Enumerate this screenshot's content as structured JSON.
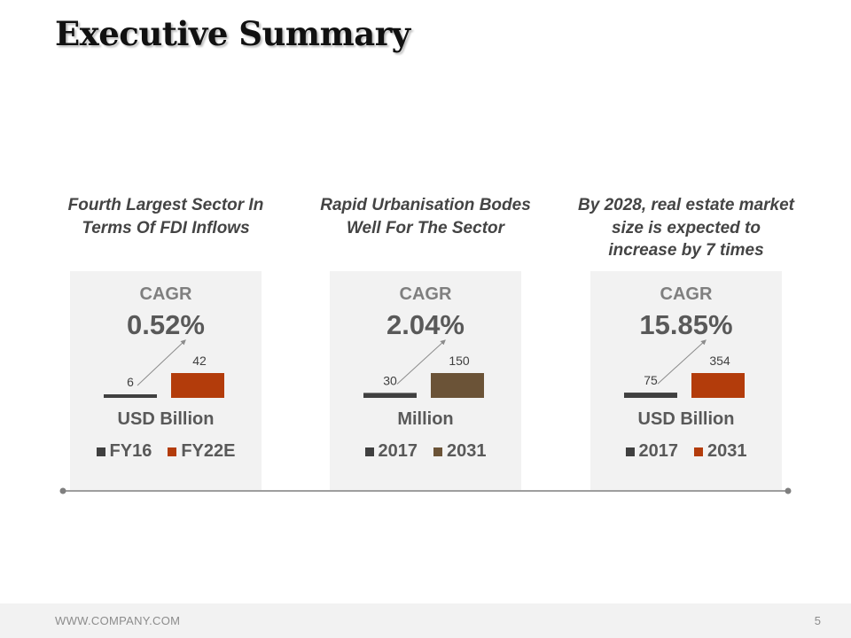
{
  "slide": {
    "title": "Executive Summary",
    "footer_url": "WWW.COMPANY.COM",
    "page_number": "5"
  },
  "colors": {
    "dark_bar": "#404040",
    "rust_bar": "#b33c0b",
    "olive_bar": "#6b5337",
    "panel_bg": "#f2f2f2",
    "timeline": "#7f7f7f"
  },
  "columns": [
    {
      "caption": "Fourth Largest Sector In  Terms Of FDI Inflows",
      "cagr_label": "CAGR",
      "cagr_value": "0.52%",
      "unit": "USD Billion"
    },
    {
      "caption": "Rapid Urbanisation Bodes Well For The Sector",
      "cagr_label": "CAGR",
      "cagr_value": "2.04%",
      "unit": "Million"
    },
    {
      "caption": "By 2028, real estate market size is expected to increase by 7 times",
      "cagr_label": "CAGR",
      "cagr_value": "15.85%",
      "unit": "USD Billion"
    }
  ],
  "chart_data": [
    {
      "type": "bar",
      "title": "CAGR 0.52%",
      "ylabel": "USD Billion",
      "categories": [
        "FY16",
        "FY22E"
      ],
      "values": [
        6,
        42
      ],
      "data_labels": [
        "6",
        "42"
      ],
      "colors": [
        "#404040",
        "#b33c0b"
      ]
    },
    {
      "type": "bar",
      "title": "CAGR 2.04%",
      "ylabel": "Million",
      "categories": [
        "2017",
        "2031"
      ],
      "values": [
        30,
        150
      ],
      "data_labels": [
        "30",
        "150"
      ],
      "colors": [
        "#404040",
        "#6b5337"
      ]
    },
    {
      "type": "bar",
      "title": "CAGR 15.85%",
      "ylabel": "USD Billion",
      "categories": [
        "2017",
        "2031"
      ],
      "values": [
        75,
        354
      ],
      "data_labels": [
        "75",
        "354"
      ],
      "colors": [
        "#404040",
        "#b33c0b"
      ]
    }
  ]
}
